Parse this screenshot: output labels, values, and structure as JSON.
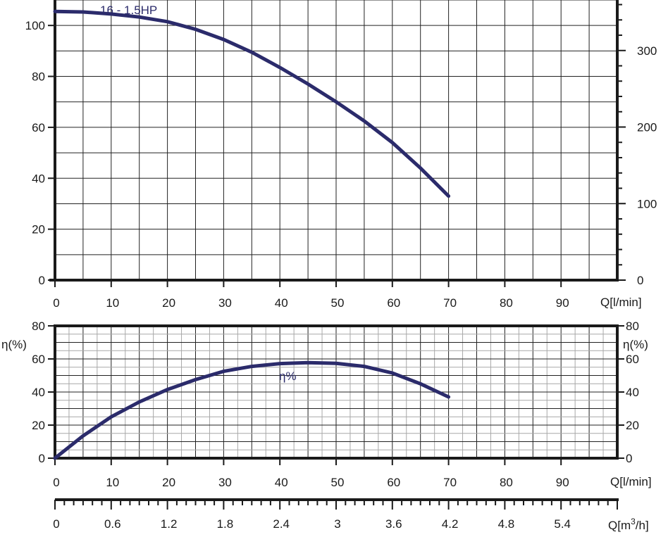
{
  "colors": {
    "curve": "#2b2b6b",
    "grid_dark": "#222222",
    "grid_light": "#a8a8a8",
    "frame": "#1a1a1a"
  },
  "chart_data": [
    {
      "id": "head",
      "type": "line",
      "title": "",
      "xlabel": "Q[l/min]",
      "ylabel": "",
      "xlim": [
        0,
        100
      ],
      "ylim": [
        0,
        110
      ],
      "x_ticks": [
        "0",
        "10",
        "20",
        "30",
        "40",
        "50",
        "60",
        "70",
        "80",
        "90"
      ],
      "y_ticks_left": [
        "0",
        "20",
        "40",
        "60",
        "80",
        "100"
      ],
      "y_ticks_right": [
        "0",
        "100",
        "200",
        "300"
      ],
      "grid": true,
      "series": [
        {
          "name": "16 - 1.5HP",
          "x": [
            0,
            5,
            10,
            15,
            20,
            25,
            30,
            35,
            40,
            45,
            50,
            55,
            60,
            65,
            70
          ],
          "y": [
            105.5,
            105.3,
            104.5,
            103.3,
            101.5,
            98.5,
            94.5,
            89.5,
            83.5,
            77,
            70,
            62.5,
            54,
            44,
            33
          ]
        }
      ]
    },
    {
      "id": "efficiency",
      "type": "line",
      "title": "",
      "xlabel": "Q[l/min]",
      "ylabel": "η(%)",
      "ylabel_right": "η(%)",
      "xlim": [
        0,
        100
      ],
      "ylim": [
        0,
        80
      ],
      "x_ticks": [
        "0",
        "10",
        "20",
        "30",
        "40",
        "50",
        "60",
        "70",
        "80",
        "90"
      ],
      "y_ticks": [
        "0",
        "20",
        "40",
        "60",
        "80"
      ],
      "grid": true,
      "series": [
        {
          "name": "η%",
          "x": [
            0,
            5,
            10,
            15,
            20,
            25,
            30,
            35,
            40,
            45,
            50,
            55,
            60,
            65,
            70
          ],
          "y": [
            0,
            13.5,
            25,
            34,
            41.5,
            47.5,
            52.5,
            55.5,
            57.2,
            57.8,
            57.3,
            55.5,
            51.5,
            45,
            37
          ]
        }
      ],
      "secondary_x_axis": {
        "label": "Q[m³/h]",
        "label_main": "Q[m",
        "label_sup": "3",
        "label_end": "/h]",
        "ticks": [
          "0",
          "0.6",
          "1.2",
          "1.8",
          "2.4",
          "3",
          "3.6",
          "4.2",
          "4.8",
          "5.4"
        ]
      }
    }
  ]
}
